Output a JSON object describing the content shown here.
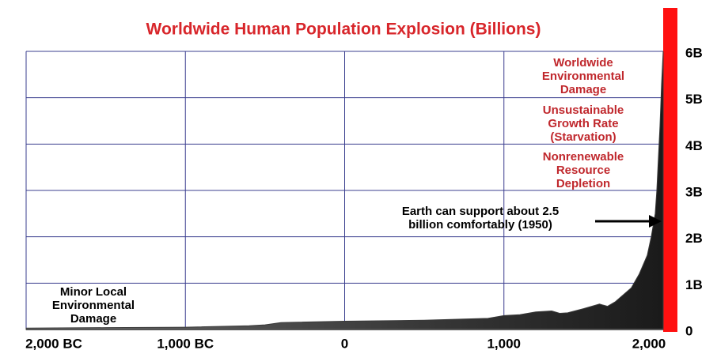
{
  "chart_data": {
    "type": "area",
    "title": "Worldwide Human Population Explosion (Billions)",
    "x": [
      -2000,
      -1500,
      -1000,
      -600,
      -500,
      -400,
      0,
      500,
      900,
      1000,
      1100,
      1200,
      1300,
      1350,
      1400,
      1500,
      1600,
      1650,
      1700,
      1750,
      1800,
      1850,
      1900,
      1925,
      1950,
      1960,
      1970,
      1980,
      1990,
      2000
    ],
    "values": [
      0.03,
      0.04,
      0.05,
      0.08,
      0.1,
      0.15,
      0.18,
      0.2,
      0.24,
      0.3,
      0.32,
      0.38,
      0.4,
      0.35,
      0.36,
      0.45,
      0.55,
      0.5,
      0.6,
      0.75,
      0.9,
      1.2,
      1.6,
      2.0,
      2.5,
      3.0,
      3.7,
      4.4,
      5.3,
      6.0
    ],
    "color": "#3a3a3a",
    "xlim": [
      -2000,
      2000
    ],
    "ylim": [
      0,
      6
    ],
    "xticks": [
      {
        "value": -2000,
        "label": "2,000 BC"
      },
      {
        "value": -1000,
        "label": "1,000 BC"
      },
      0,
      {
        "value": 1000,
        "label": "1,000"
      },
      {
        "value": 2000,
        "label": "2,000"
      }
    ],
    "yticks": [
      0,
      {
        "value": 1,
        "label": "1B"
      },
      {
        "value": 2,
        "label": "2B"
      },
      {
        "value": 3,
        "label": "3B"
      },
      {
        "value": 4,
        "label": "4B"
      },
      {
        "value": 5,
        "label": "5B"
      },
      {
        "value": 6,
        "label": "6B"
      }
    ],
    "grid": true,
    "annotations": [
      {
        "lines": [
          "Worldwide",
          "Environmental",
          "Damage"
        ],
        "color": "#c0282d"
      },
      {
        "lines": [
          "Unsustainable",
          "Growth Rate",
          "(Starvation)"
        ],
        "color": "#c0282d"
      },
      {
        "lines": [
          "Nonrenewable",
          "Resource",
          "Depletion"
        ],
        "color": "#c0282d"
      },
      {
        "lines": [
          "Earth can support about 2.5",
          "billion comfortably (1950)"
        ],
        "color": "#000000"
      },
      {
        "lines": [
          "Minor Local",
          "Environmental",
          "Damage"
        ],
        "color": "#000000"
      }
    ]
  }
}
